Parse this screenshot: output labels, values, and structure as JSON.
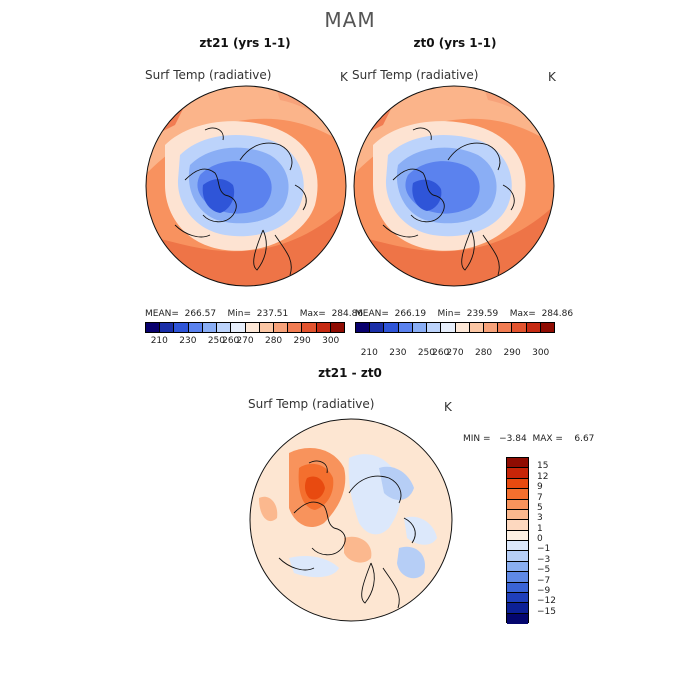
{
  "season_title": "MAM",
  "panels": {
    "left": {
      "title": "zt21 (yrs 1-1)",
      "variable": "Surf Temp (radiative)",
      "units": "K",
      "stats": "MEAN=  266.57    Min=  237.51    Max=  284.86"
    },
    "right": {
      "title": "zt0 (yrs 1-1)",
      "variable": "Surf Temp (radiative)",
      "units": "K",
      "stats": "MEAN=  266.19    Min=  239.59    Max=  284.86"
    },
    "diff": {
      "title": "zt21 - zt0",
      "variable": "Surf Temp (radiative)",
      "units": "K",
      "stats": "MIN =   −3.84  MAX =    6.67"
    }
  },
  "abs_colorbar": {
    "colors": [
      "#08006e",
      "#1a2fa8",
      "#2f55d8",
      "#5b82ee",
      "#8aaef5",
      "#bcd3fb",
      "#e6eefb",
      "#fde7d6",
      "#fbc6a4",
      "#f7a27a",
      "#f17c52",
      "#e2532e",
      "#c52a12",
      "#8f0c02"
    ],
    "ticks": [
      "210",
      "230",
      "250",
      "260",
      "270",
      "280",
      "290",
      "300"
    ]
  },
  "diff_colorbar": {
    "colors": [
      "#8f0c02",
      "#c72508",
      "#e84a10",
      "#f46f2e",
      "#f8935c",
      "#fbb88e",
      "#fdd8bf",
      "#fdf0e3",
      "#dce8fb",
      "#b6cef6",
      "#8aaef0",
      "#5f89e6",
      "#3a64d6",
      "#1f3fba",
      "#0c2096",
      "#04066e"
    ],
    "labels": [
      "15",
      "12",
      "9",
      "7",
      "5",
      "3",
      "1",
      "0",
      "−1",
      "−3",
      "−5",
      "−7",
      "−9",
      "−12",
      "−15"
    ]
  }
}
